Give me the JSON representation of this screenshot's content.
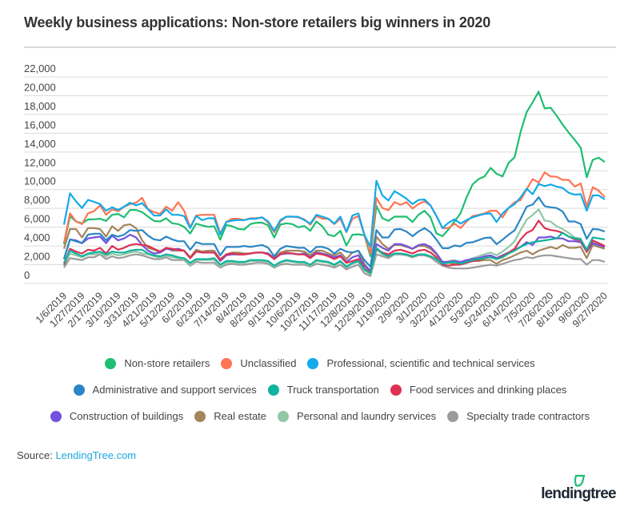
{
  "title": "Weekly business applications: Non-store retailers big winners in 2020",
  "source": {
    "label": "Source:",
    "link_text": "LendingTree.com"
  },
  "logo": {
    "text": "lendingtree",
    "leaf_color": "#1fbe73"
  },
  "chart_data": {
    "type": "line",
    "title": "Weekly business applications: Non-store retailers big winners in 2020",
    "xlabel": "",
    "ylabel": "",
    "ylim": [
      0,
      22000
    ],
    "y_ticks": [
      0,
      2000,
      4000,
      6000,
      8000,
      10000,
      12000,
      14000,
      16000,
      18000,
      20000,
      22000
    ],
    "y_tick_labels": [
      "0",
      "2,000",
      "4,000",
      "6,000",
      "8,000",
      "10,000",
      "12,000",
      "14,000",
      "16,000",
      "18,000",
      "20,000",
      "22,000"
    ],
    "x_frequency": "weekly",
    "x_tick_every": 3,
    "x_tick_labels": [
      "1/6/2019",
      "1/27/2019",
      "2/17/2019",
      "3/10/2019",
      "3/31/2019",
      "4/21/2019",
      "5/12/2019",
      "6/2/2019",
      "6/23/2019",
      "7/14/2019",
      "8/4/2019",
      "8/25/2019",
      "9/15/2019",
      "10/6/2019",
      "10/27/2019",
      "11/17/2019",
      "12/8/2019",
      "12/29/2019",
      "1/19/2020",
      "2/9/2020",
      "3/1/2020",
      "3/22/2020",
      "4/12/2020",
      "5/3/2020",
      "5/24/2020",
      "6/14/2020",
      "7/5/2020",
      "7/26/2020",
      "8/16/2020",
      "9/6/2020",
      "9/27/2020"
    ],
    "grid": "horizontal",
    "legend_position": "bottom",
    "series": [
      {
        "name": "Non-store retailers",
        "color": "#1fbe73",
        "values": [
          4190,
          7180,
          6610,
          6410,
          6810,
          6840,
          6900,
          6670,
          7320,
          7410,
          7040,
          7840,
          7840,
          7610,
          7120,
          6670,
          6610,
          6950,
          6410,
          6330,
          6040,
          5330,
          6380,
          6180,
          6040,
          6100,
          4670,
          6240,
          6100,
          5810,
          5760,
          6330,
          6470,
          6470,
          6180,
          4900,
          6270,
          6410,
          6330,
          5990,
          6130,
          5610,
          6610,
          6100,
          5190,
          5040,
          5610,
          4050,
          5190,
          5240,
          5130,
          2900,
          8270,
          6950,
          6670,
          7120,
          7120,
          7120,
          6550,
          7320,
          7750,
          7040,
          5330,
          5040,
          5760,
          6610,
          7470,
          9180,
          10550,
          11120,
          11400,
          12310,
          11690,
          11400,
          12830,
          13450,
          16160,
          18240,
          19300,
          20430,
          18640,
          18720,
          17870,
          16930,
          16080,
          15300,
          14450,
          11310,
          13170,
          13400,
          12940
        ]
      },
      {
        "name": "Unclassified",
        "color": "#ff7452",
        "values": [
          4330,
          7470,
          6610,
          6330,
          7470,
          7700,
          8320,
          7320,
          7900,
          7700,
          8180,
          8460,
          8600,
          9120,
          7900,
          7610,
          7410,
          8180,
          7750,
          8660,
          7750,
          5990,
          7240,
          7320,
          7320,
          7320,
          5330,
          6550,
          6900,
          6900,
          6750,
          6950,
          6950,
          7040,
          6470,
          5470,
          6610,
          7120,
          7120,
          7040,
          6840,
          6270,
          7180,
          6900,
          6900,
          6330,
          6900,
          5470,
          6900,
          7180,
          5190,
          3190,
          9120,
          8040,
          7810,
          8660,
          8380,
          8660,
          7980,
          8460,
          8750,
          8320,
          7180,
          5900,
          5900,
          6380,
          5900,
          6610,
          7180,
          7320,
          7470,
          7750,
          7750,
          7040,
          8040,
          8660,
          8890,
          10030,
          11120,
          10740,
          11830,
          11400,
          11370,
          11030,
          11030,
          10320,
          10660,
          8180,
          10260,
          9890,
          9180
        ]
      },
      {
        "name": "Professional, scientific and technical services",
        "color": "#12aaeb",
        "values": [
          6270,
          9600,
          8750,
          8040,
          8900,
          8700,
          8460,
          7750,
          8120,
          7840,
          8180,
          8600,
          8320,
          8550,
          7900,
          7240,
          7240,
          7900,
          7320,
          7320,
          7180,
          5900,
          7180,
          6750,
          6950,
          6950,
          5190,
          6550,
          6700,
          6750,
          6750,
          6900,
          6900,
          7040,
          6600,
          5600,
          6750,
          7120,
          7120,
          7100,
          6750,
          6380,
          7320,
          7120,
          6900,
          6380,
          7120,
          5500,
          7240,
          7470,
          5200,
          3900,
          10940,
          9380,
          8840,
          9830,
          9460,
          9030,
          8460,
          8890,
          8950,
          8320,
          7180,
          5900,
          6470,
          6840,
          6380,
          6750,
          7040,
          7240,
          7410,
          7470,
          6550,
          7470,
          8040,
          8460,
          9180,
          10090,
          9520,
          10600,
          10370,
          10550,
          10320,
          10170,
          9660,
          9460,
          9520,
          7750,
          9380,
          9380,
          8950
        ]
      },
      {
        "name": "Administrative and support services",
        "color": "#2a86c4",
        "values": [
          2600,
          4700,
          4500,
          4300,
          5200,
          5300,
          5300,
          4600,
          5200,
          5000,
          5200,
          5700,
          5600,
          5700,
          5100,
          4700,
          4600,
          5000,
          4700,
          4500,
          4500,
          3600,
          4400,
          4200,
          4200,
          4200,
          3000,
          3900,
          3900,
          3900,
          4000,
          3900,
          4000,
          4100,
          3800,
          2900,
          3700,
          4000,
          3900,
          3800,
          3800,
          3300,
          3900,
          3900,
          3700,
          3200,
          3700,
          3400,
          3300,
          3500,
          2500,
          1800,
          5700,
          4900,
          4900,
          5760,
          5810,
          5530,
          5040,
          5530,
          5900,
          5470,
          4670,
          3760,
          3760,
          4050,
          3960,
          4330,
          4390,
          4620,
          4850,
          4900,
          4190,
          4670,
          5190,
          5670,
          6900,
          8180,
          8410,
          9180,
          8240,
          8120,
          8040,
          7670,
          6610,
          6610,
          6330,
          4760,
          5810,
          5760,
          5530
        ]
      },
      {
        "name": "Truck transportation",
        "color": "#10b39c",
        "values": [
          2200,
          3500,
          3200,
          2900,
          3200,
          3300,
          3400,
          3100,
          3400,
          3300,
          3300,
          3500,
          3600,
          3600,
          3200,
          3000,
          2900,
          3100,
          3000,
          2800,
          2700,
          2200,
          2600,
          2600,
          2600,
          2700,
          2000,
          2400,
          2400,
          2300,
          2300,
          2500,
          2500,
          2500,
          2400,
          1900,
          2300,
          2500,
          2400,
          2300,
          2300,
          2000,
          2500,
          2400,
          2300,
          2000,
          2400,
          1800,
          2200,
          2400,
          1500,
          1100,
          3800,
          3200,
          2900,
          3200,
          3200,
          3100,
          2900,
          3100,
          3100,
          2900,
          2600,
          2100,
          2200,
          2300,
          2100,
          2300,
          2500,
          2600,
          2700,
          2800,
          2600,
          2800,
          3200,
          3500,
          3900,
          4200,
          4400,
          4500,
          4600,
          4700,
          4800,
          5400,
          5000,
          4800,
          4700,
          3600,
          4900,
          4800,
          4700
        ]
      },
      {
        "name": "Food services and drinking places",
        "color": "#dc3153",
        "values": [
          2000,
          3700,
          3400,
          3200,
          3600,
          3500,
          3800,
          3200,
          4000,
          3600,
          3800,
          4100,
          4200,
          4100,
          4000,
          3700,
          3400,
          3800,
          3700,
          3600,
          3500,
          2700,
          3400,
          3300,
          3300,
          3300,
          2500,
          3100,
          3200,
          3100,
          3100,
          3200,
          3300,
          3300,
          3100,
          2600,
          3100,
          3300,
          3200,
          3100,
          3100,
          2700,
          3200,
          3100,
          2900,
          2600,
          2900,
          2200,
          2400,
          2600,
          1600,
          1200,
          3700,
          3300,
          3100,
          3500,
          3600,
          3400,
          3200,
          3500,
          3600,
          3300,
          2800,
          2000,
          1900,
          2000,
          2000,
          2200,
          2400,
          2500,
          2700,
          2800,
          2600,
          2900,
          3300,
          3700,
          4700,
          5400,
          5700,
          6700,
          5900,
          5700,
          5600,
          5400,
          5000,
          4700,
          4600,
          3400,
          4600,
          4300,
          4000
        ]
      },
      {
        "name": "Construction of buildings",
        "color": "#7452e0",
        "values": [
          2600,
          4700,
          4600,
          4300,
          4800,
          4900,
          5000,
          4300,
          5100,
          4600,
          4800,
          5200,
          4900,
          4100,
          3500,
          3200,
          3300,
          3700,
          3600,
          3700,
          3500,
          2700,
          3400,
          3300,
          3300,
          3300,
          2400,
          3000,
          3100,
          3100,
          3100,
          3200,
          3300,
          3300,
          3200,
          2700,
          3100,
          3200,
          3200,
          3100,
          3200,
          2800,
          3300,
          3200,
          3000,
          2800,
          3000,
          2300,
          2800,
          3000,
          1900,
          1400,
          4200,
          3800,
          3500,
          4200,
          4200,
          4000,
          3700,
          4100,
          4200,
          3900,
          3200,
          2300,
          2300,
          2400,
          2300,
          2500,
          2600,
          2700,
          2900,
          3000,
          2700,
          3000,
          3300,
          3600,
          3900,
          4400,
          4100,
          4900,
          4900,
          5000,
          4800,
          4800,
          4500,
          4500,
          4400,
          3400,
          4300,
          4100,
          3900
        ]
      },
      {
        "name": "Real estate",
        "color": "#a4845a",
        "values": [
          3700,
          5800,
          5800,
          4900,
          5900,
          5900,
          5800,
          5000,
          6100,
          5600,
          6200,
          6300,
          5900,
          4600,
          3800,
          3600,
          3300,
          3800,
          3500,
          3500,
          3500,
          2800,
          3600,
          3400,
          3500,
          3500,
          2600,
          3100,
          3300,
          3300,
          3200,
          3200,
          3300,
          3300,
          3200,
          2700,
          3300,
          3500,
          3500,
          3500,
          3400,
          3000,
          3500,
          3500,
          3200,
          3000,
          3300,
          2600,
          3300,
          3500,
          2100,
          1300,
          5000,
          4200,
          3700,
          4100,
          4100,
          3900,
          3700,
          4000,
          4000,
          3700,
          3100,
          2300,
          2200,
          2100,
          2200,
          2200,
          2400,
          2400,
          2500,
          2500,
          2100,
          2500,
          2700,
          3000,
          3300,
          3500,
          3100,
          3500,
          3700,
          3900,
          3700,
          4100,
          3800,
          3800,
          3900,
          2700,
          4100,
          3900,
          3700
        ]
      },
      {
        "name": "Personal and laundry services",
        "color": "#92c7a6",
        "values": [
          1900,
          3200,
          3000,
          2800,
          3100,
          3100,
          3200,
          2900,
          3200,
          3000,
          3100,
          3300,
          3400,
          3200,
          3100,
          2900,
          2700,
          3000,
          2800,
          2700,
          2600,
          2000,
          2500,
          2500,
          2500,
          2500,
          1800,
          2200,
          2300,
          2200,
          2200,
          2400,
          2400,
          2400,
          2300,
          1800,
          2200,
          2400,
          2300,
          2200,
          2200,
          1900,
          2400,
          2300,
          2200,
          1900,
          2300,
          1700,
          2100,
          2300,
          1400,
          1000,
          3600,
          3100,
          2900,
          3200,
          3200,
          3100,
          2900,
          3100,
          3100,
          2900,
          2500,
          2100,
          2400,
          2500,
          2200,
          2400,
          2700,
          2900,
          3100,
          3300,
          3000,
          3400,
          3900,
          4500,
          5700,
          6800,
          7300,
          7900,
          6700,
          6600,
          6100,
          5800,
          5400,
          4900,
          4800,
          3300,
          4500,
          4300,
          4000
        ]
      },
      {
        "name": "Specialty trade contractors",
        "color": "#9b9b9b",
        "values": [
          1700,
          2700,
          2600,
          2500,
          2800,
          2800,
          3100,
          2600,
          2900,
          2700,
          2800,
          3000,
          3100,
          3000,
          2800,
          2600,
          2600,
          2800,
          2500,
          2500,
          2500,
          1900,
          2300,
          2200,
          2200,
          2200,
          1700,
          2000,
          2100,
          2000,
          2000,
          2100,
          2200,
          2200,
          2100,
          1700,
          2000,
          2100,
          2000,
          2000,
          2000,
          1800,
          2100,
          2000,
          1900,
          1700,
          2000,
          1500,
          1800,
          2000,
          1100,
          800,
          3100,
          2900,
          2700,
          3100,
          3100,
          3000,
          2800,
          3000,
          3000,
          2800,
          2300,
          1900,
          1700,
          1600,
          1600,
          1600,
          1700,
          1800,
          1900,
          2000,
          1900,
          2100,
          2300,
          2500,
          2600,
          2800,
          2700,
          2900,
          3000,
          3000,
          2900,
          2800,
          2700,
          2600,
          2600,
          2000,
          2500,
          2500,
          2300
        ]
      }
    ]
  }
}
